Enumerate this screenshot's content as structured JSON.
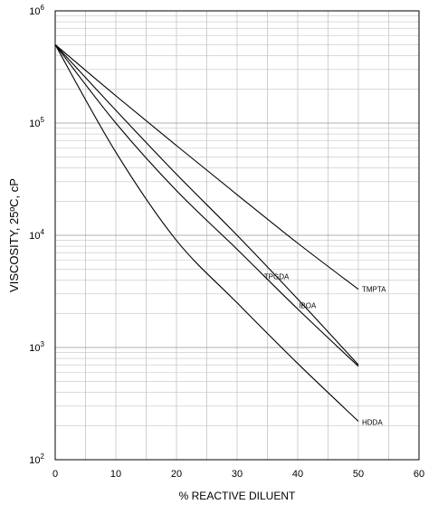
{
  "chart_data": {
    "type": "line",
    "xlabel": "% REACTIVE DILUENT",
    "ylabel": "VISCOSITY, 25ºC, cP",
    "xlim": [
      0,
      60
    ],
    "ylim": [
      100,
      1000000
    ],
    "yscale": "log",
    "grid": true,
    "x_ticks": [
      "0",
      "10",
      "20",
      "30",
      "40",
      "50",
      "60"
    ],
    "y_ticks": [
      {
        "base": "10",
        "exp": "2"
      },
      {
        "base": "10",
        "exp": "3"
      },
      {
        "base": "10",
        "exp": "4"
      },
      {
        "base": "10",
        "exp": "5"
      },
      {
        "base": "10",
        "exp": "6"
      }
    ],
    "series": [
      {
        "name": "TMPTA",
        "x": [
          0,
          10,
          20,
          30,
          40,
          50
        ],
        "y": [
          500000,
          175000,
          63000,
          23000,
          8500,
          3300
        ]
      },
      {
        "name": "IBOA",
        "x": [
          0,
          10,
          20,
          30,
          40,
          50
        ],
        "y": [
          500000,
          130000,
          35000,
          10000,
          2700,
          700
        ]
      },
      {
        "name": "TPGDA",
        "x": [
          0,
          10,
          20,
          30,
          40,
          50
        ],
        "y": [
          500000,
          100000,
          25000,
          7500,
          2200,
          680
        ]
      },
      {
        "name": "HDDA",
        "x": [
          0,
          10,
          20,
          30,
          40,
          50
        ],
        "y": [
          500000,
          55000,
          9000,
          2500,
          720,
          220
        ]
      }
    ]
  }
}
